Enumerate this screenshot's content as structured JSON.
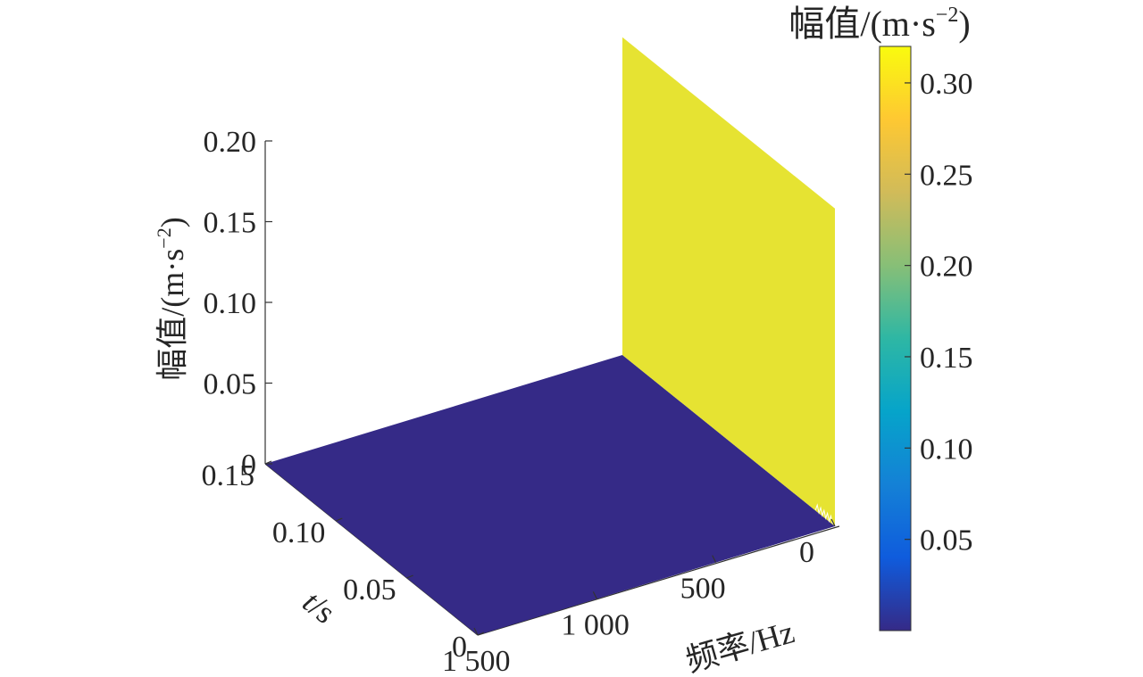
{
  "chart_data": {
    "type": "surface",
    "title": "",
    "zlabel": "幅值/(m·s",
    "zlabel_exp": "−2",
    "xlabel": "频率/Hz",
    "ylabel_italic": "t",
    "ylabel_rest": "/s",
    "colorbar_label": "幅值/(m·s",
    "colorbar_label_exp": "−2",
    "z_ticks": [
      {
        "value": 0,
        "label": "0"
      },
      {
        "value": 0.05,
        "label": "0.05"
      },
      {
        "value": 0.1,
        "label": "0.10"
      },
      {
        "value": 0.15,
        "label": "0.15"
      },
      {
        "value": 0.2,
        "label": "0.20"
      }
    ],
    "zlim": [
      0,
      0.2
    ],
    "t_ticks": [
      {
        "value": 0,
        "label": "0"
      },
      {
        "value": 0.05,
        "label": "0.05"
      },
      {
        "value": 0.1,
        "label": "0.10"
      },
      {
        "value": 0.15,
        "label": "0.15"
      }
    ],
    "tlim": [
      0,
      0.15
    ],
    "f_ticks": [
      {
        "value": 0,
        "label": "0"
      },
      {
        "value": 500,
        "label": "500"
      },
      {
        "value": 1000,
        "label": "1 000"
      },
      {
        "value": 1500,
        "label": "1 500"
      }
    ],
    "flim": [
      0,
      1500
    ],
    "colorbar_ticks": [
      {
        "value": 0.05,
        "label": "0.05"
      },
      {
        "value": 0.1,
        "label": "0.10"
      },
      {
        "value": 0.15,
        "label": "0.15"
      },
      {
        "value": 0.2,
        "label": "0.20"
      },
      {
        "value": 0.25,
        "label": "0.25"
      },
      {
        "value": 0.3,
        "label": "0.30"
      }
    ],
    "colorbar_range": [
      0,
      0.32
    ],
    "colormap": [
      "#352a87",
      "#0f5cdd",
      "#1481d6",
      "#06a4ca",
      "#2eb7a4",
      "#87bf77",
      "#d1bb59",
      "#fec832",
      "#f9fb0e"
    ],
    "surface": {
      "floor_amplitude": 0.0,
      "peak_frequency_hz": 0,
      "peak_amplitude": 0.32,
      "floor_color": "#352a87",
      "peak_color": "#e6e332"
    }
  }
}
